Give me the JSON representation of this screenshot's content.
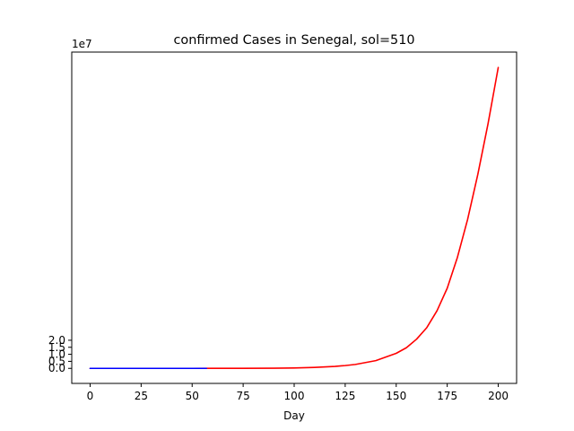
{
  "chart_data": {
    "type": "line",
    "title": "confirmed Cases in Senegal, sol=510",
    "xlabel": "Day",
    "ylabel": "",
    "y_offset_label": "1e7",
    "xlim": [
      -9,
      209
    ],
    "ylim": [
      -1.07,
      22.5
    ],
    "y_unit_multiplier": 10000000,
    "x_ticks": [
      0,
      25,
      50,
      75,
      100,
      125,
      150,
      175,
      200
    ],
    "y_ticks": [
      0.0,
      0.5,
      1.0,
      1.5,
      2.0
    ],
    "y_tick_labels": [
      "0.0",
      "0.5",
      "1.0",
      "1.5",
      "2.0"
    ],
    "grid": false,
    "series": [
      {
        "color": "#ff0000",
        "x": [
          0,
          25,
          50,
          60,
          75,
          90,
          100,
          110,
          120,
          125,
          130,
          140,
          150,
          155,
          160,
          165,
          170,
          175,
          180,
          185,
          190,
          195,
          200
        ],
        "y": [
          0.0,
          0.0,
          0.0,
          0.001,
          0.003,
          0.012,
          0.03,
          0.07,
          0.14,
          0.2,
          0.28,
          0.55,
          1.07,
          1.47,
          2.08,
          2.9,
          4.1,
          5.7,
          7.9,
          10.6,
          13.8,
          17.4,
          21.4
        ]
      },
      {
        "color": "#0000ff",
        "x": [
          0,
          10,
          20,
          30,
          40,
          50,
          57
        ],
        "y": [
          0.0,
          0.0,
          0.0,
          0.0,
          0.0,
          0.0,
          0.0
        ]
      }
    ]
  }
}
